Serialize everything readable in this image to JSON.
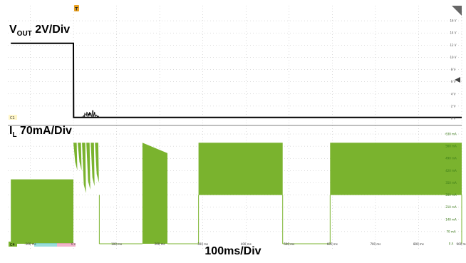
{
  "chart_data": [
    {
      "type": "line",
      "channel": "C1",
      "title_main": "V",
      "title_sub": "OUT",
      "title_rest": " 2V/Div",
      "trace_color": "#000000",
      "ylim": [
        0,
        18
      ],
      "y_ticks": [
        "16 V",
        "14 V",
        "12 V",
        "10 V",
        "8 V",
        "6 V",
        "4 V",
        "2 V",
        "0 V"
      ],
      "x_ms": [
        -145,
        0,
        0.5,
        900
      ],
      "y_V": [
        12.3,
        12.3,
        0.15,
        0.15
      ],
      "startup_ripple_ms": [
        18,
        60
      ],
      "startup_ripple_peak_V": 1.3
    },
    {
      "type": "area",
      "channel": "C4",
      "title_main": "I",
      "title_sub": "L",
      "title_rest": " 70mA/Div",
      "trace_color": "#7ab32e",
      "ylim": [
        0,
        630
      ],
      "y_ticks": [
        "630 mA",
        "560 mA",
        "490 mA",
        "420 mA",
        "350 mA",
        "280 mA",
        "210 mA",
        "140 mA",
        "70 mA",
        "0 A"
      ],
      "segments": [
        {
          "from_ms": -145,
          "to_ms": 0,
          "low_mA": 0,
          "high_mA": 370
        },
        {
          "from_ms": 0,
          "to_ms": 60,
          "low_mA": 0,
          "high_mA": 580,
          "burst": true
        },
        {
          "from_ms": 60,
          "to_ms": 160,
          "low_mA": 0,
          "high_mA": 0
        },
        {
          "from_ms": 160,
          "to_ms": 218,
          "low_mA": 0,
          "high_mA": 580,
          "decay_to_mA": 520
        },
        {
          "from_ms": 218,
          "to_ms": 290,
          "low_mA": 0,
          "high_mA": 0
        },
        {
          "from_ms": 290,
          "to_ms": 485,
          "low_mA": 280,
          "high_mA": 580
        },
        {
          "from_ms": 485,
          "to_ms": 595,
          "low_mA": 0,
          "high_mA": 0
        },
        {
          "from_ms": 595,
          "to_ms": 900,
          "low_mA": 280,
          "high_mA": 580
        }
      ]
    }
  ],
  "time_axis": {
    "ticks": [
      "-100 ms",
      "0 s",
      "100 ms",
      "200 ms",
      "300 ms",
      "400 ms",
      "500 ms",
      "600 ms",
      "700 ms",
      "800 ms",
      "900 ms"
    ],
    "tick_values_ms": [
      -100,
      0,
      100,
      200,
      300,
      400,
      500,
      600,
      700,
      800,
      900
    ],
    "xlim_ms": [
      -152,
      900
    ],
    "label": "100ms/Div"
  },
  "markers": {
    "trigger": "T",
    "ch1_tag": "C1",
    "ch4_tag": "C4"
  },
  "colors": {
    "grid": "#b8b8b8",
    "frame": "#555555",
    "voltage_trace": "#000000",
    "current_trace": "#7ab32e",
    "trigger_marker": "#e8a020"
  }
}
